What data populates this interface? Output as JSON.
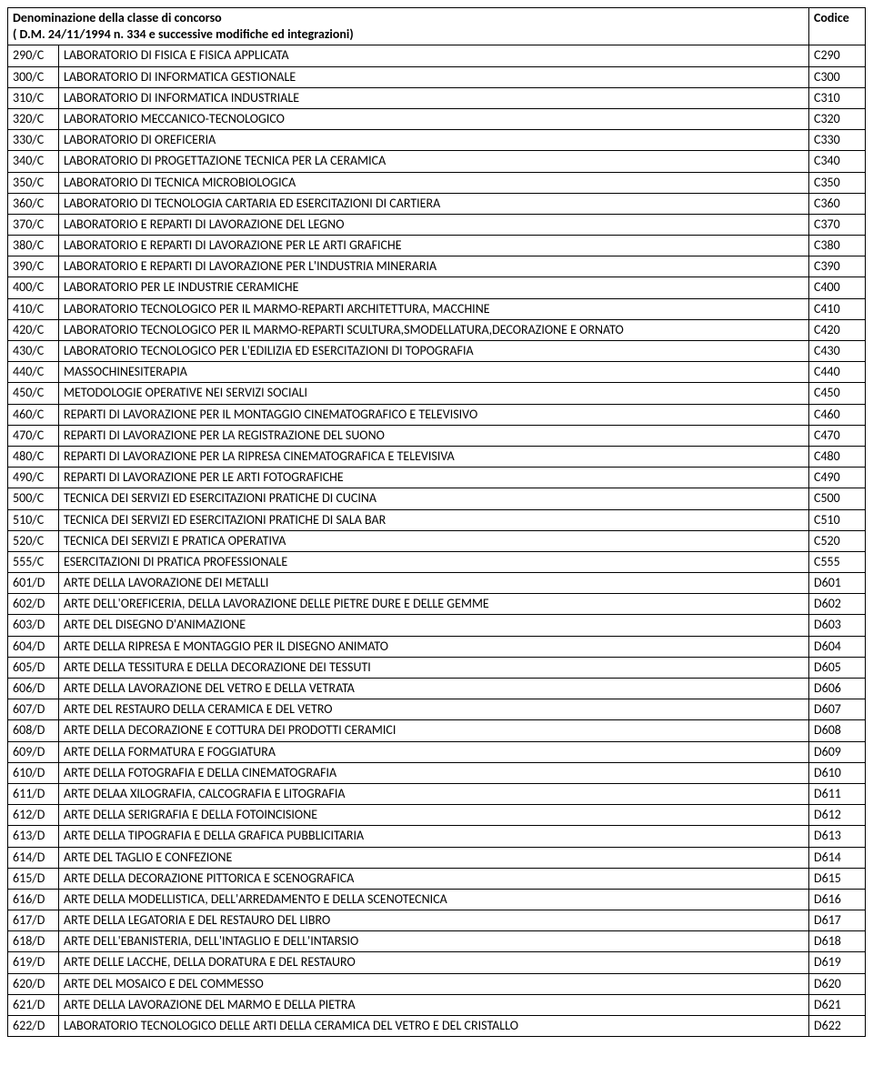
{
  "header": {
    "left_line1": "Denominazione della classe di concorso",
    "left_line2": "( D.M. 24/11/1994 n. 334 e successive modifiche ed integrazioni)",
    "right": "Codice"
  },
  "rows": [
    {
      "a": "290/C",
      "b": "LABORATORIO DI FISICA E FISICA APPLICATA",
      "c": "C290"
    },
    {
      "a": "300/C",
      "b": "LABORATORIO DI INFORMATICA GESTIONALE",
      "c": "C300"
    },
    {
      "a": "310/C",
      "b": "LABORATORIO DI INFORMATICA INDUSTRIALE",
      "c": "C310"
    },
    {
      "a": "320/C",
      "b": "LABORATORIO MECCANICO-TECNOLOGICO",
      "c": "C320"
    },
    {
      "a": "330/C",
      "b": "LABORATORIO DI OREFICERIA",
      "c": "C330"
    },
    {
      "a": "340/C",
      "b": "LABORATORIO DI PROGETTAZIONE TECNICA PER LA CERAMICA",
      "c": "C340"
    },
    {
      "a": "350/C",
      "b": "LABORATORIO DI TECNICA MICROBIOLOGICA",
      "c": "C350"
    },
    {
      "a": "360/C",
      "b": "LABORATORIO DI TECNOLOGIA CARTARIA ED ESERCITAZIONI DI CARTIERA",
      "c": "C360"
    },
    {
      "a": "370/C",
      "b": "LABORATORIO E REPARTI DI LAVORAZIONE DEL LEGNO",
      "c": "C370"
    },
    {
      "a": "380/C",
      "b": "LABORATORIO E REPARTI DI LAVORAZIONE PER LE ARTI GRAFICHE",
      "c": "C380"
    },
    {
      "a": "390/C",
      "b": "LABORATORIO E REPARTI DI LAVORAZIONE PER L'INDUSTRIA MINERARIA",
      "c": "C390"
    },
    {
      "a": "400/C",
      "b": "LABORATORIO PER LE INDUSTRIE CERAMICHE",
      "c": "C400"
    },
    {
      "a": "410/C",
      "b": "LABORATORIO TECNOLOGICO PER IL MARMO-REPARTI ARCHITETTURA, MACCHINE",
      "c": "C410"
    },
    {
      "a": "420/C",
      "b": "LABORATORIO TECNOLOGICO PER IL MARMO-REPARTI SCULTURA,SMODELLATURA,DECORAZIONE E ORNATO",
      "c": "C420"
    },
    {
      "a": "430/C",
      "b": "LABORATORIO TECNOLOGICO PER L'EDILIZIA ED ESERCITAZIONI DI TOPOGRAFIA",
      "c": "C430"
    },
    {
      "a": "440/C",
      "b": "MASSOCHINESITERAPIA",
      "c": "C440"
    },
    {
      "a": "450/C",
      "b": "METODOLOGIE OPERATIVE NEI SERVIZI SOCIALI",
      "c": "C450"
    },
    {
      "a": "460/C",
      "b": "REPARTI DI LAVORAZIONE PER IL MONTAGGIO CINEMATOGRAFICO E TELEVISIVO",
      "c": "C460"
    },
    {
      "a": "470/C",
      "b": "REPARTI DI LAVORAZIONE PER LA REGISTRAZIONE DEL SUONO",
      "c": "C470"
    },
    {
      "a": "480/C",
      "b": "REPARTI DI LAVORAZIONE PER LA RIPRESA CINEMATOGRAFICA E TELEVISIVA",
      "c": "C480"
    },
    {
      "a": "490/C",
      "b": "REPARTI DI LAVORAZIONE PER LE ARTI FOTOGRAFICHE",
      "c": "C490"
    },
    {
      "a": "500/C",
      "b": "TECNICA DEI SERVIZI ED ESERCITAZIONI PRATICHE DI CUCINA",
      "c": "C500"
    },
    {
      "a": "510/C",
      "b": "TECNICA DEI SERVIZI ED ESERCITAZIONI PRATICHE DI SALA BAR",
      "c": "C510"
    },
    {
      "a": "520/C",
      "b": "TECNICA DEI SERVIZI E PRATICA OPERATIVA",
      "c": "C520"
    },
    {
      "a": "555/C",
      "b": "ESERCITAZIONI DI PRATICA PROFESSIONALE",
      "c": "C555"
    },
    {
      "a": "601/D",
      "b": "ARTE DELLA LAVORAZIONE DEI METALLI",
      "c": "D601"
    },
    {
      "a": "602/D",
      "b": "ARTE DELL'OREFICERIA, DELLA LAVORAZIONE DELLE PIETRE DURE E DELLE GEMME",
      "c": "D602"
    },
    {
      "a": "603/D",
      "b": "ARTE DEL DISEGNO D'ANIMAZIONE",
      "c": "D603"
    },
    {
      "a": "604/D",
      "b": "ARTE DELLA RIPRESA E MONTAGGIO PER IL DISEGNO ANIMATO",
      "c": "D604"
    },
    {
      "a": "605/D",
      "b": "ARTE DELLA TESSITURA E DELLA DECORAZIONE DEI TESSUTI",
      "c": "D605"
    },
    {
      "a": "606/D",
      "b": "ARTE DELLA LAVORAZIONE DEL VETRO E DELLA VETRATA",
      "c": "D606"
    },
    {
      "a": "607/D",
      "b": "ARTE DEL RESTAURO DELLA CERAMICA E DEL VETRO",
      "c": "D607"
    },
    {
      "a": "608/D",
      "b": "ARTE DELLA DECORAZIONE E COTTURA DEI PRODOTTI CERAMICI",
      "c": "D608"
    },
    {
      "a": "609/D",
      "b": "ARTE DELLA FORMATURA E FOGGIATURA",
      "c": "D609"
    },
    {
      "a": "610/D",
      "b": "ARTE DELLA FOTOGRAFIA E DELLA CINEMATOGRAFIA",
      "c": "D610"
    },
    {
      "a": "611/D",
      "b": "ARTE DELAA XILOGRAFIA, CALCOGRAFIA E LITOGRAFIA",
      "c": "D611"
    },
    {
      "a": "612/D",
      "b": "ARTE DELLA SERIGRAFIA E DELLA FOTOINCISIONE",
      "c": "D612"
    },
    {
      "a": "613/D",
      "b": "ARTE DELLA TIPOGRAFIA E DELLA GRAFICA PUBBLICITARIA",
      "c": "D613"
    },
    {
      "a": "614/D",
      "b": "ARTE DEL TAGLIO E CONFEZIONE",
      "c": "D614"
    },
    {
      "a": "615/D",
      "b": "ARTE DELLA DECORAZIONE PITTORICA E SCENOGRAFICA",
      "c": "D615"
    },
    {
      "a": "616/D",
      "b": "ARTE DELLA MODELLISTICA, DELL'ARREDAMENTO E DELLA SCENOTECNICA",
      "c": "D616"
    },
    {
      "a": "617/D",
      "b": "ARTE DELLA LEGATORIA E DEL RESTAURO DEL LIBRO",
      "c": "D617"
    },
    {
      "a": "618/D",
      "b": "ARTE DELL'EBANISTERIA, DELL'INTAGLIO E DELL'INTARSIO",
      "c": "D618"
    },
    {
      "a": "619/D",
      "b": "ARTE DELLE LACCHE, DELLA DORATURA E DEL RESTAURO",
      "c": "D619"
    },
    {
      "a": "620/D",
      "b": "ARTE DEL MOSAICO E DEL COMMESSO",
      "c": "D620"
    },
    {
      "a": "621/D",
      "b": "ARTE DELLA LAVORAZIONE DEL MARMO E DELLA PIETRA",
      "c": "D621"
    },
    {
      "a": "622/D",
      "b": "LABORATORIO TECNOLOGICO DELLE ARTI DELLA CERAMICA DEL VETRO E DEL CRISTALLO",
      "c": "D622"
    }
  ]
}
